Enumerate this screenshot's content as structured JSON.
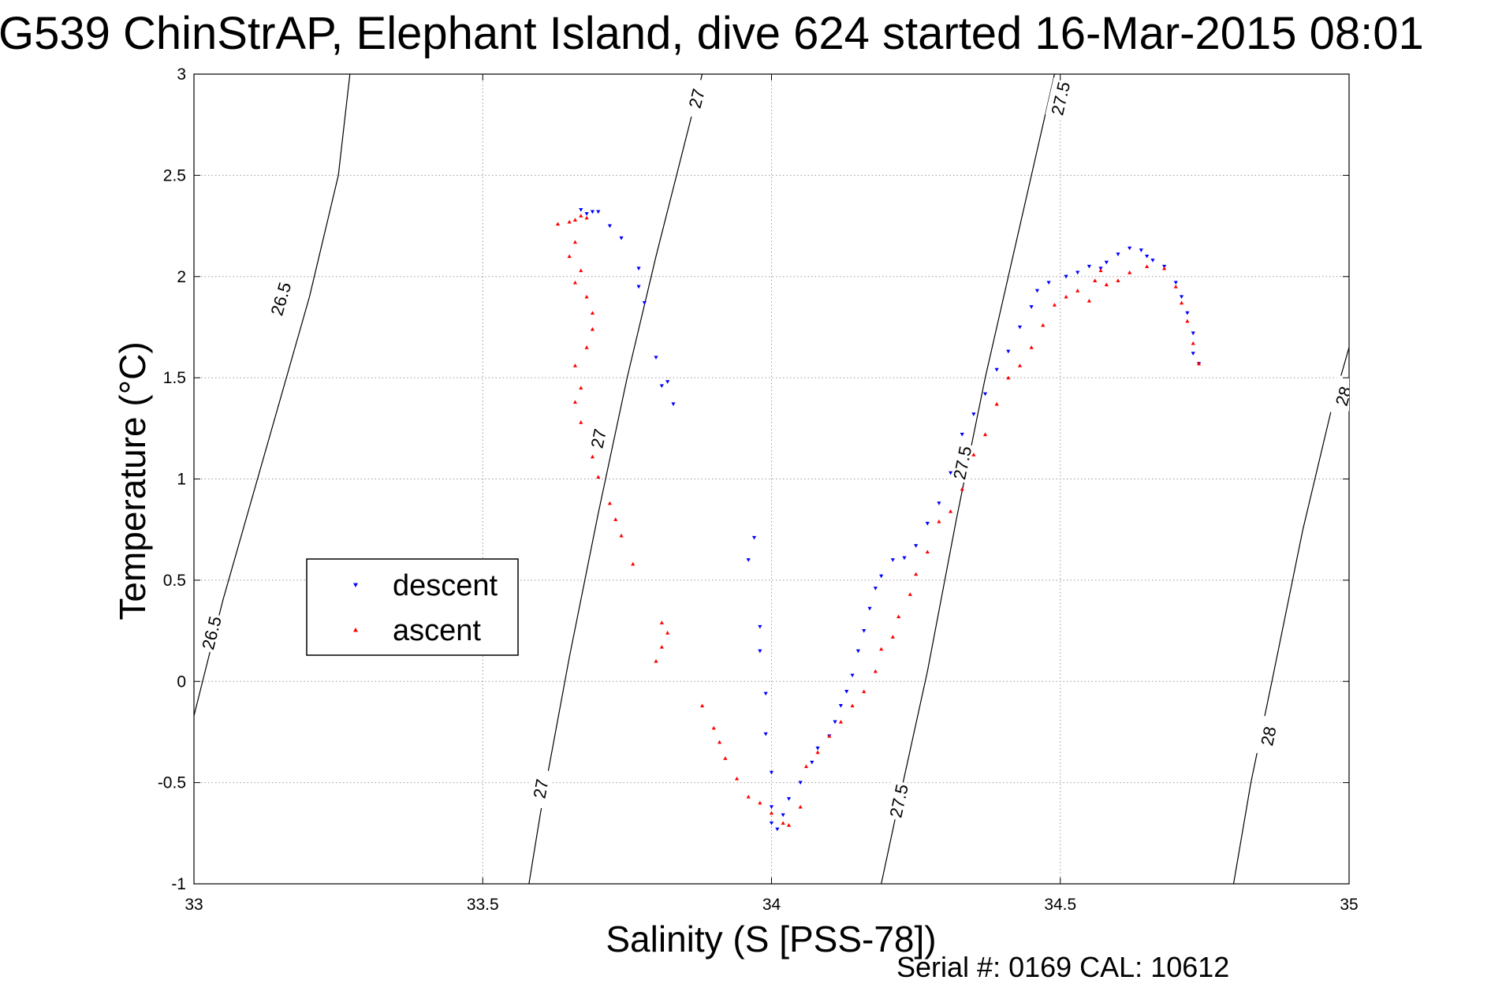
{
  "title": "G539 ChinStrAP, Elephant Island, dive 624 started 16-Mar-2015 08:01",
  "footer": "Serial #: 0169 CAL: 10612",
  "chart_data": {
    "type": "scatter",
    "title": "G539 ChinStrAP, Elephant Island, dive 624 started 16-Mar-2015 08:01",
    "xlabel": "Salinity (S [PSS-78])",
    "ylabel": "Temperature (°C)",
    "xlim": [
      33,
      35
    ],
    "ylim": [
      -1,
      3
    ],
    "xticks": [
      33,
      33.5,
      34,
      34.5,
      35
    ],
    "xtick_labels": [
      "33",
      "33.5",
      "34",
      "34.5",
      "35"
    ],
    "yticks": [
      -1,
      -0.5,
      0,
      0.5,
      1,
      1.5,
      2,
      2.5,
      3
    ],
    "ytick_labels": [
      "-1",
      "-0.5",
      "0",
      "0.5",
      "1",
      "1.5",
      "2",
      "2.5",
      "3"
    ],
    "grid": true,
    "legend_position": "center-left",
    "series": [
      {
        "name": "descent",
        "color": "#0000ff",
        "marker": "triangle-down",
        "points": [
          [
            33.67,
            2.33
          ],
          [
            33.68,
            2.31
          ],
          [
            33.69,
            2.32
          ],
          [
            33.7,
            2.32
          ],
          [
            33.72,
            2.25
          ],
          [
            33.74,
            2.19
          ],
          [
            33.77,
            2.04
          ],
          [
            33.77,
            1.95
          ],
          [
            33.78,
            1.87
          ],
          [
            33.8,
            1.6
          ],
          [
            33.81,
            1.46
          ],
          [
            33.82,
            1.48
          ],
          [
            33.83,
            1.37
          ],
          [
            33.96,
            0.6
          ],
          [
            33.97,
            0.71
          ],
          [
            33.98,
            0.27
          ],
          [
            33.98,
            0.15
          ],
          [
            33.99,
            -0.06
          ],
          [
            33.99,
            -0.26
          ],
          [
            34.0,
            -0.45
          ],
          [
            34.0,
            -0.62
          ],
          [
            34.0,
            -0.7
          ],
          [
            34.01,
            -0.73
          ],
          [
            34.02,
            -0.66
          ],
          [
            34.03,
            -0.58
          ],
          [
            34.05,
            -0.5
          ],
          [
            34.07,
            -0.4
          ],
          [
            34.08,
            -0.33
          ],
          [
            34.1,
            -0.27
          ],
          [
            34.11,
            -0.2
          ],
          [
            34.12,
            -0.12
          ],
          [
            34.13,
            -0.05
          ],
          [
            34.14,
            0.03
          ],
          [
            34.15,
            0.15
          ],
          [
            34.16,
            0.25
          ],
          [
            34.17,
            0.36
          ],
          [
            34.18,
            0.46
          ],
          [
            34.19,
            0.52
          ],
          [
            34.21,
            0.6
          ],
          [
            34.23,
            0.61
          ],
          [
            34.25,
            0.67
          ],
          [
            34.27,
            0.78
          ],
          [
            34.29,
            0.88
          ],
          [
            34.31,
            1.03
          ],
          [
            34.33,
            1.22
          ],
          [
            34.35,
            1.32
          ],
          [
            34.37,
            1.42
          ],
          [
            34.39,
            1.54
          ],
          [
            34.41,
            1.63
          ],
          [
            34.43,
            1.75
          ],
          [
            34.45,
            1.85
          ],
          [
            34.46,
            1.93
          ],
          [
            34.48,
            1.97
          ],
          [
            34.51,
            2.0
          ],
          [
            34.53,
            2.02
          ],
          [
            34.55,
            2.05
          ],
          [
            34.57,
            2.04
          ],
          [
            34.58,
            2.07
          ],
          [
            34.6,
            2.11
          ],
          [
            34.62,
            2.14
          ],
          [
            34.64,
            2.13
          ],
          [
            34.65,
            2.1
          ],
          [
            34.66,
            2.08
          ],
          [
            34.68,
            2.05
          ],
          [
            34.7,
            1.97
          ],
          [
            34.71,
            1.9
          ],
          [
            34.72,
            1.82
          ],
          [
            34.73,
            1.72
          ],
          [
            34.73,
            1.62
          ],
          [
            34.74,
            1.57
          ]
        ]
      },
      {
        "name": "ascent",
        "color": "#ff0000",
        "marker": "triangle-up",
        "points": [
          [
            33.63,
            2.26
          ],
          [
            33.65,
            2.27
          ],
          [
            33.66,
            2.28
          ],
          [
            33.67,
            2.3
          ],
          [
            33.68,
            2.29
          ],
          [
            33.66,
            2.17
          ],
          [
            33.65,
            2.1
          ],
          [
            33.67,
            2.03
          ],
          [
            33.66,
            1.97
          ],
          [
            33.68,
            1.9
          ],
          [
            33.69,
            1.82
          ],
          [
            33.69,
            1.74
          ],
          [
            33.68,
            1.65
          ],
          [
            33.66,
            1.56
          ],
          [
            33.67,
            1.45
          ],
          [
            33.66,
            1.38
          ],
          [
            33.67,
            1.28
          ],
          [
            33.69,
            1.11
          ],
          [
            33.7,
            1.01
          ],
          [
            33.72,
            0.88
          ],
          [
            33.73,
            0.8
          ],
          [
            33.74,
            0.72
          ],
          [
            33.76,
            0.58
          ],
          [
            33.81,
            0.29
          ],
          [
            33.81,
            0.17
          ],
          [
            33.8,
            0.1
          ],
          [
            33.82,
            0.24
          ],
          [
            33.88,
            -0.12
          ],
          [
            33.9,
            -0.23
          ],
          [
            33.91,
            -0.3
          ],
          [
            33.92,
            -0.38
          ],
          [
            33.94,
            -0.48
          ],
          [
            33.96,
            -0.57
          ],
          [
            33.98,
            -0.6
          ],
          [
            34.0,
            -0.65
          ],
          [
            34.02,
            -0.7
          ],
          [
            34.03,
            -0.71
          ],
          [
            34.05,
            -0.62
          ],
          [
            34.06,
            -0.42
          ],
          [
            34.08,
            -0.35
          ],
          [
            34.1,
            -0.27
          ],
          [
            34.12,
            -0.2
          ],
          [
            34.14,
            -0.12
          ],
          [
            34.16,
            -0.05
          ],
          [
            34.18,
            0.05
          ],
          [
            34.19,
            0.16
          ],
          [
            34.21,
            0.22
          ],
          [
            34.22,
            0.32
          ],
          [
            34.24,
            0.43
          ],
          [
            34.25,
            0.53
          ],
          [
            34.27,
            0.64
          ],
          [
            34.29,
            0.79
          ],
          [
            34.31,
            0.84
          ],
          [
            34.33,
            0.95
          ],
          [
            34.35,
            1.12
          ],
          [
            34.37,
            1.22
          ],
          [
            34.39,
            1.37
          ],
          [
            34.41,
            1.5
          ],
          [
            34.43,
            1.56
          ],
          [
            34.45,
            1.65
          ],
          [
            34.47,
            1.76
          ],
          [
            34.49,
            1.86
          ],
          [
            34.51,
            1.9
          ],
          [
            34.53,
            1.93
          ],
          [
            34.55,
            1.88
          ],
          [
            34.56,
            1.98
          ],
          [
            34.57,
            2.03
          ],
          [
            34.58,
            1.96
          ],
          [
            34.6,
            1.98
          ],
          [
            34.62,
            2.02
          ],
          [
            34.65,
            2.05
          ],
          [
            34.68,
            2.04
          ],
          [
            34.7,
            1.95
          ],
          [
            34.71,
            1.87
          ],
          [
            34.72,
            1.78
          ],
          [
            34.73,
            1.67
          ],
          [
            34.74,
            1.57
          ]
        ]
      }
    ],
    "density_contours": [
      {
        "label": "26.5",
        "points": [
          [
            33.0,
            -0.17
          ],
          [
            33.05,
            0.4
          ],
          [
            33.1,
            0.9
          ],
          [
            33.15,
            1.4
          ],
          [
            33.2,
            1.9
          ],
          [
            33.25,
            2.5
          ],
          [
            33.27,
            3.0
          ]
        ],
        "labels_at": [
          [
            33.03,
            0.24
          ],
          [
            33.15,
            1.89
          ]
        ]
      },
      {
        "label": "27",
        "points": [
          [
            33.58,
            -1.0
          ],
          [
            33.6,
            -0.65
          ],
          [
            33.65,
            0.12
          ],
          [
            33.7,
            0.83
          ],
          [
            33.75,
            1.5
          ],
          [
            33.8,
            2.1
          ],
          [
            33.88,
            3.0
          ]
        ],
        "labels_at": [
          [
            33.6,
            -0.53
          ],
          [
            33.7,
            1.2
          ],
          [
            33.87,
            2.88
          ]
        ]
      },
      {
        "label": "27.5",
        "points": [
          [
            34.19,
            -1.0
          ],
          [
            34.22,
            -0.6
          ],
          [
            34.27,
            0.05
          ],
          [
            34.32,
            0.8
          ],
          [
            34.37,
            1.5
          ],
          [
            34.43,
            2.25
          ],
          [
            34.49,
            3.0
          ]
        ],
        "labels_at": [
          [
            34.22,
            -0.59
          ],
          [
            34.33,
            1.08
          ],
          [
            34.5,
            2.88
          ]
        ]
      },
      {
        "label": "28",
        "points": [
          [
            34.8,
            -1.0
          ],
          [
            34.83,
            -0.5
          ],
          [
            34.87,
            0.05
          ],
          [
            34.92,
            0.75
          ],
          [
            34.97,
            1.35
          ],
          [
            35.0,
            1.65
          ]
        ],
        "labels_at": [
          [
            34.86,
            -0.27
          ],
          [
            34.99,
            1.41
          ]
        ]
      }
    ]
  }
}
